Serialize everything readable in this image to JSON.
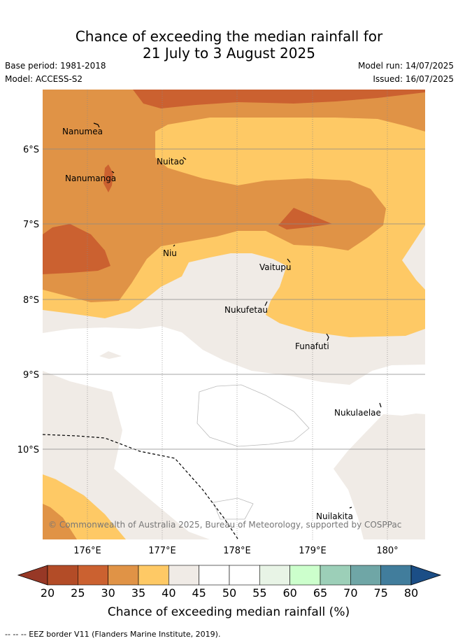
{
  "header": {
    "title_line1": "Chance of exceeding the median rainfall for",
    "title_line2": "21 July to 3 August 2025",
    "base_period": "Base period: 1981-2018",
    "model": "Model: ACCESS-S2",
    "model_run": "Model run: 14/07/2025",
    "issued": "Issued: 16/07/2025"
  },
  "map": {
    "lat_labels": [
      "6°S",
      "7°S",
      "8°S",
      "9°S",
      "10°S"
    ],
    "lon_labels": [
      "176°E",
      "177°E",
      "178°E",
      "179°E",
      "180°"
    ],
    "places": [
      {
        "name": "Nanumea"
      },
      {
        "name": "Nuitao"
      },
      {
        "name": "Nanumanga"
      },
      {
        "name": "Niu"
      },
      {
        "name": "Vaitupu"
      },
      {
        "name": "Nukufetau"
      },
      {
        "name": "Funafuti"
      },
      {
        "name": "Nukulaelae"
      },
      {
        "name": "Nuilakita"
      }
    ],
    "copyright": "© Commonwealth of Australia 2025, Bureau of Meteorology, supported by COSPPac"
  },
  "colorbar": {
    "ticks": [
      "20",
      "25",
      "30",
      "35",
      "40",
      "45",
      "50",
      "55",
      "60",
      "65",
      "70",
      "75",
      "80"
    ],
    "colors": [
      "#b34c27",
      "#cb6130",
      "#e09346",
      "#fec965",
      "#f0ebe6",
      "#ffffff",
      "#ffffff",
      "#e8f4e6",
      "#ccffcc",
      "#9ccfb8",
      "#6fa6a6",
      "#417d9c"
    ],
    "under_color": "#973826",
    "over_color": "#1b4e86",
    "label": "Chance of exceeding median rainfall (%)"
  },
  "footer": {
    "legend_text": "-- -- -- EEZ border V11 (Flanders Marine Institute, 2019)."
  }
}
